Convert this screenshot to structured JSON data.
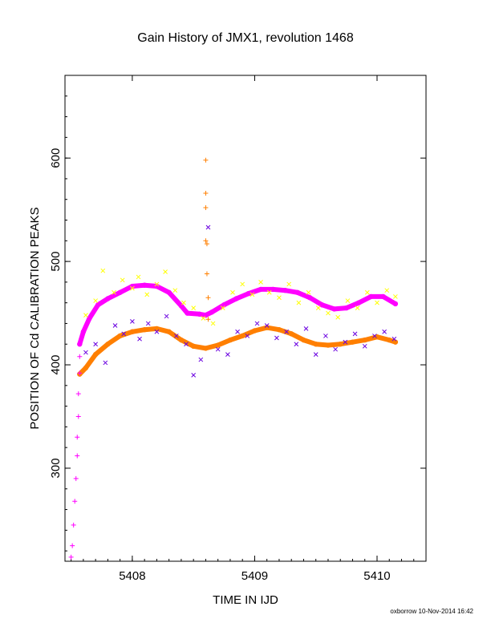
{
  "chart_data": {
    "type": "scatter",
    "title": "Gain History of JMX1, revolution 1468",
    "xlabel": "TIME IN IJD",
    "ylabel": "POSITION OF Cd CALIBRATION PEAKS",
    "xlim": [
      5407.45,
      5410.4
    ],
    "ylim": [
      210,
      680
    ],
    "xticks": [
      "5408",
      "5409",
      "5410"
    ],
    "yticks": [
      "300",
      "400",
      "500",
      "600"
    ],
    "grid": false,
    "series": [
      {
        "color": "#ff00ff",
        "marker": "dot",
        "kind": "line",
        "x": [
          5407.57,
          5407.6,
          5407.65,
          5407.72,
          5407.8,
          5407.9,
          5408.0,
          5408.1,
          5408.2,
          5408.3,
          5408.4,
          5408.45,
          5408.55,
          5408.6,
          5408.65,
          5408.75,
          5408.85,
          5408.95,
          5409.05,
          5409.15,
          5409.25,
          5409.35,
          5409.45,
          5409.55,
          5409.65,
          5409.75,
          5409.85,
          5409.95,
          5410.05,
          5410.15
        ],
        "y": [
          420,
          432,
          445,
          458,
          464,
          470,
          476,
          477,
          476,
          470,
          457,
          450,
          449,
          448,
          451,
          458,
          464,
          469,
          473,
          473,
          472,
          470,
          465,
          458,
          454,
          455,
          460,
          466,
          466,
          459
        ]
      },
      {
        "color": "#ff7f00",
        "marker": "dot",
        "kind": "line",
        "x": [
          5407.57,
          5407.62,
          5407.7,
          5407.8,
          5407.9,
          5408.0,
          5408.1,
          5408.2,
          5408.3,
          5408.4,
          5408.5,
          5408.6,
          5408.7,
          5408.8,
          5408.9,
          5409.0,
          5409.1,
          5409.2,
          5409.3,
          5409.4,
          5409.5,
          5409.6,
          5409.7,
          5409.8,
          5409.9,
          5410.0,
          5410.1,
          5410.15
        ],
        "y": [
          391,
          397,
          410,
          420,
          428,
          432,
          434,
          435,
          432,
          424,
          418,
          416,
          419,
          424,
          428,
          433,
          436,
          434,
          430,
          424,
          420,
          419,
          420,
          422,
          424,
          427,
          424,
          422
        ]
      },
      {
        "color": "#ffff00",
        "marker": "x",
        "x": [
          5407.62,
          5407.7,
          5407.76,
          5407.85,
          5407.92,
          5408.0,
          5408.05,
          5408.12,
          5408.2,
          5408.27,
          5408.35,
          5408.42,
          5408.5,
          5408.58,
          5408.66,
          5408.74,
          5408.82,
          5408.9,
          5408.98,
          5409.05,
          5409.12,
          5409.2,
          5409.28,
          5409.36,
          5409.44,
          5409.52,
          5409.6,
          5409.68,
          5409.76,
          5409.84,
          5409.92,
          5410.0,
          5410.08,
          5410.15
        ],
        "y": [
          448,
          462,
          491,
          470,
          482,
          474,
          485,
          468,
          478,
          490,
          472,
          460,
          455,
          445,
          440,
          455,
          470,
          478,
          468,
          480,
          470,
          465,
          478,
          460,
          470,
          455,
          450,
          446,
          462,
          455,
          470,
          460,
          472,
          466
        ]
      },
      {
        "color": "#6a00e0",
        "marker": "x",
        "x": [
          5407.62,
          5407.7,
          5407.78,
          5407.86,
          5407.93,
          5408.0,
          5408.06,
          5408.13,
          5408.2,
          5408.28,
          5408.36,
          5408.44,
          5408.5,
          5408.56,
          5408.62,
          5408.7,
          5408.78,
          5408.86,
          5408.94,
          5409.02,
          5409.1,
          5409.18,
          5409.26,
          5409.34,
          5409.42,
          5409.5,
          5409.58,
          5409.66,
          5409.74,
          5409.82,
          5409.9,
          5409.98,
          5410.06,
          5410.14
        ],
        "y": [
          412,
          420,
          402,
          438,
          430,
          442,
          425,
          440,
          432,
          447,
          428,
          420,
          390,
          405,
          533,
          415,
          410,
          432,
          428,
          440,
          438,
          426,
          432,
          420,
          435,
          410,
          428,
          415,
          422,
          430,
          418,
          428,
          432,
          425
        ]
      },
      {
        "color": "#ff7f00",
        "marker": "plus",
        "x": [
          5408.6,
          5408.6,
          5408.6,
          5408.6,
          5408.61,
          5408.61,
          5408.62,
          5408.62
        ],
        "y": [
          598,
          566,
          552,
          520,
          517,
          488,
          465,
          444
        ]
      },
      {
        "color": "#ff00ff",
        "marker": "plus",
        "x": [
          5407.5,
          5407.51,
          5407.52,
          5407.53,
          5407.54,
          5407.55,
          5407.55,
          5407.56,
          5407.56,
          5407.57,
          5407.57
        ],
        "y": [
          214,
          225,
          245,
          268,
          290,
          312,
          330,
          350,
          372,
          392,
          408
        ]
      }
    ]
  },
  "footer": "oxborrow 10-Nov-2014 16:42"
}
